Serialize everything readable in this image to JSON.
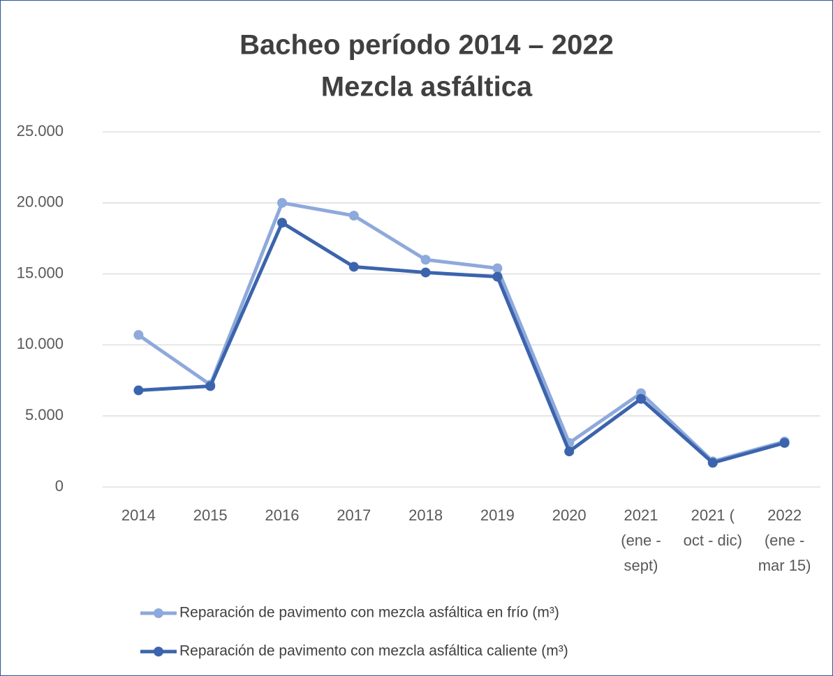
{
  "chart_data": {
    "type": "line",
    "title": "Bacheo período 2014 – 2022",
    "subtitle": "Mezcla asfáltica",
    "categories": [
      "2014",
      "2015",
      "2016",
      "2017",
      "2018",
      "2019",
      "2020",
      "2021 (ene - sept)",
      "2021 ( oct - dic)",
      "2022 (ene - mar 15)"
    ],
    "series": [
      {
        "name": "Reparación de pavimento con mezcla asfáltica en frío (m³)",
        "color": "#8EA9DB",
        "values": [
          10700,
          7200,
          20000,
          19100,
          16000,
          15400,
          3100,
          6600,
          1800,
          3200
        ]
      },
      {
        "name": "Reparación de pavimento con mezcla asfáltica caliente (m³)",
        "color": "#3C64AD",
        "values": [
          6800,
          7100,
          18600,
          15500,
          15100,
          14800,
          2500,
          6200,
          1700,
          3100
        ]
      }
    ],
    "ylim": [
      0,
      25000
    ],
    "yticks": [
      0,
      {
        "value": 5000,
        "label": "5.000"
      },
      {
        "value": 10000,
        "label": "10.000"
      },
      {
        "value": 15000,
        "label": "15.000"
      },
      {
        "value": 20000,
        "label": "20.000"
      },
      {
        "value": 25000,
        "label": "25.000"
      }
    ],
    "grid": true,
    "legend": "bottom"
  }
}
